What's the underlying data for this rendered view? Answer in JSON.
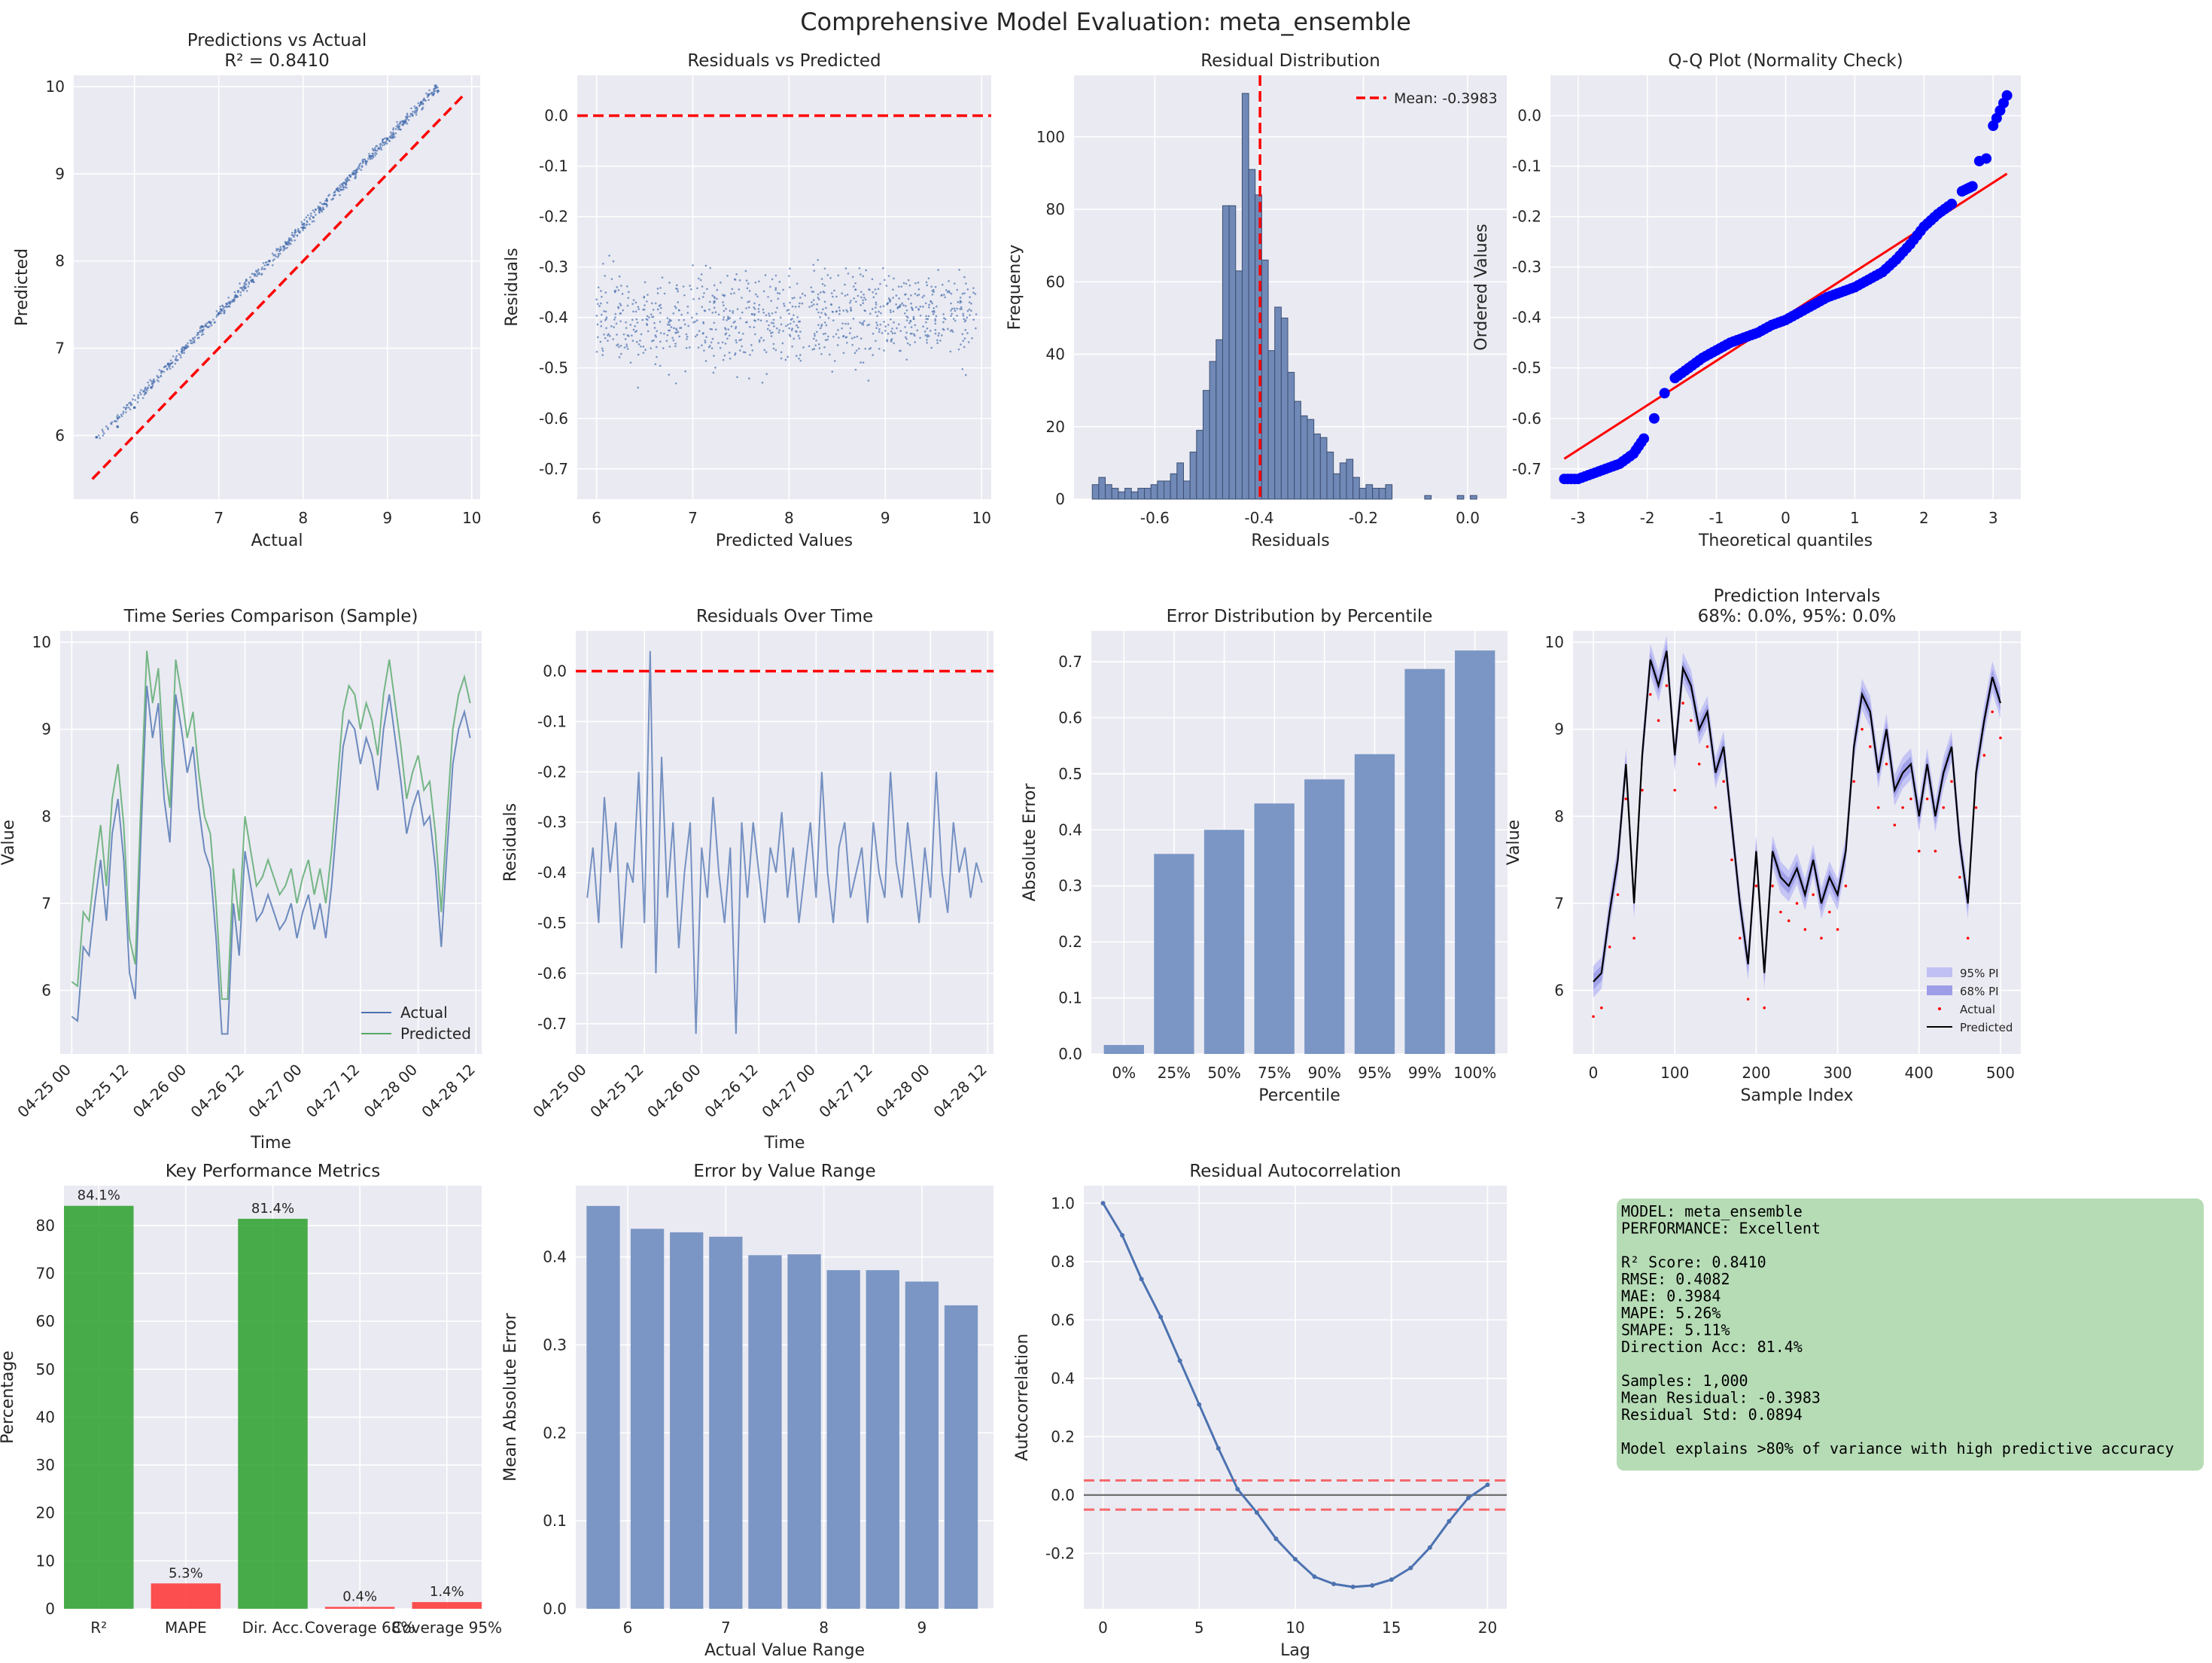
{
  "suptitle": "Comprehensive Model Evaluation: meta_ensemble",
  "colors": {
    "panel_bg": "#eaeaf2",
    "grid": "#ffffff",
    "blue": "#4c72b0",
    "green": "#55a868",
    "red": "#ff0000",
    "qq_blue": "#0000ff",
    "pi95": "#c0c0f5",
    "pi68": "#9d9de8",
    "metric_good": "#2ca02c",
    "metric_bad": "#ff3333",
    "textbox_bg": "#b2dab2"
  },
  "chart_data": [
    {
      "id": "pred_vs_actual",
      "type": "scatter",
      "title": "Predictions vs Actual\nR² = 0.8410",
      "xlabel": "Actual",
      "ylabel": "Predicted",
      "xlim": [
        5.28,
        10.1
      ],
      "ylim": [
        5.27,
        10.13
      ],
      "xticks": [
        6,
        7,
        8,
        9,
        10
      ],
      "yticks": [
        6,
        7,
        8,
        9,
        10
      ],
      "reference_line": [
        [
          5.5,
          5.5
        ],
        [
          9.9,
          9.9
        ]
      ],
      "points_summary": "approximately predicted = actual + 0.40 with small noise",
      "points": [
        [
          5.55,
          5.98
        ],
        [
          5.8,
          6.1
        ],
        [
          6.0,
          6.32
        ],
        [
          6.2,
          6.55
        ],
        [
          6.4,
          6.82
        ],
        [
          6.6,
          7.0
        ],
        [
          6.8,
          7.25
        ],
        [
          7.0,
          7.4
        ],
        [
          7.2,
          7.6
        ],
        [
          7.4,
          7.78
        ],
        [
          7.6,
          8.0
        ],
        [
          7.8,
          8.2
        ],
        [
          8.0,
          8.38
        ],
        [
          8.2,
          8.6
        ],
        [
          8.4,
          8.82
        ],
        [
          8.6,
          9.0
        ],
        [
          8.8,
          9.2
        ],
        [
          9.0,
          9.4
        ],
        [
          9.2,
          9.6
        ],
        [
          9.4,
          9.82
        ],
        [
          9.6,
          9.95
        ]
      ]
    },
    {
      "id": "resid_vs_pred",
      "type": "scatter",
      "title": "Residuals vs Predicted",
      "xlabel": "Predicted Values",
      "ylabel": "Residuals",
      "xlim": [
        5.8,
        10.1
      ],
      "ylim": [
        -0.76,
        0.08
      ],
      "xticks": [
        6,
        7,
        8,
        9,
        10
      ],
      "yticks": [
        0.0,
        -0.1,
        -0.2,
        -0.3,
        -0.4,
        -0.5,
        -0.6,
        -0.7
      ],
      "hline": 0.0,
      "points_summary": "residuals concentrated around -0.40, spread -0.72 to 0.04"
    },
    {
      "id": "resid_dist",
      "type": "bar",
      "title": "Residual Distribution",
      "xlabel": "Residuals",
      "ylabel": "Frequency",
      "xlim": [
        -0.755,
        0.075
      ],
      "ylim": [
        0,
        117
      ],
      "xticks": [
        -0.6,
        -0.4,
        -0.2,
        0.0
      ],
      "yticks": [
        0,
        20,
        40,
        60,
        80,
        100
      ],
      "bin_start": -0.72,
      "bin_width": 0.0125,
      "counts": [
        4,
        6,
        4,
        3,
        2,
        3,
        2,
        3,
        3,
        4,
        5,
        5,
        7,
        10,
        5,
        13,
        19,
        30,
        38,
        44,
        81,
        81,
        63,
        112,
        91,
        84,
        66,
        41,
        53,
        50,
        35,
        27,
        23,
        22,
        18,
        17,
        13,
        7,
        10,
        11,
        6,
        3,
        4,
        3,
        3,
        4,
        0,
        0,
        0,
        0,
        0,
        1,
        0,
        0,
        0,
        0,
        1,
        0,
        1,
        0
      ],
      "vline": -0.3983,
      "legend": [
        "Mean: -0.3983"
      ]
    },
    {
      "id": "qq",
      "type": "scatter",
      "title": "Q-Q Plot (Normality Check)",
      "xlabel": "Theoretical quantiles",
      "ylabel": "Ordered Values",
      "xlim": [
        -3.4,
        3.4
      ],
      "ylim": [
        -0.76,
        0.08
      ],
      "xticks": [
        -3,
        -2,
        -1,
        0,
        1,
        2,
        3
      ],
      "yticks": [
        0.0,
        -0.1,
        -0.2,
        -0.3,
        -0.4,
        -0.5,
        -0.6,
        -0.7
      ],
      "fit_line": [
        [
          -3.2,
          -0.68
        ],
        [
          3.2,
          -0.115
        ]
      ],
      "points": [
        [
          -3.2,
          -0.72
        ],
        [
          -3.0,
          -0.72
        ],
        [
          -2.8,
          -0.71
        ],
        [
          -2.6,
          -0.7
        ],
        [
          -2.4,
          -0.69
        ],
        [
          -2.2,
          -0.67
        ],
        [
          -2.05,
          -0.64
        ],
        [
          -1.9,
          -0.6
        ],
        [
          -1.75,
          -0.55
        ],
        [
          -1.6,
          -0.52
        ],
        [
          -1.4,
          -0.5
        ],
        [
          -1.2,
          -0.48
        ],
        [
          -1.0,
          -0.465
        ],
        [
          -0.8,
          -0.45
        ],
        [
          -0.6,
          -0.44
        ],
        [
          -0.4,
          -0.43
        ],
        [
          -0.2,
          -0.415
        ],
        [
          0.0,
          -0.405
        ],
        [
          0.2,
          -0.39
        ],
        [
          0.4,
          -0.375
        ],
        [
          0.6,
          -0.36
        ],
        [
          0.8,
          -0.35
        ],
        [
          1.0,
          -0.34
        ],
        [
          1.2,
          -0.325
        ],
        [
          1.4,
          -0.31
        ],
        [
          1.6,
          -0.285
        ],
        [
          1.8,
          -0.255
        ],
        [
          2.0,
          -0.22
        ],
        [
          2.2,
          -0.195
        ],
        [
          2.4,
          -0.175
        ],
        [
          2.55,
          -0.15
        ],
        [
          2.7,
          -0.14
        ],
        [
          2.8,
          -0.09
        ],
        [
          2.9,
          -0.085
        ],
        [
          3.0,
          -0.02
        ],
        [
          3.2,
          0.04
        ]
      ]
    },
    {
      "id": "ts_compare",
      "type": "line",
      "title": "Time Series Comparison (Sample)",
      "xlabel": "Time",
      "ylabel": "Value",
      "xticks": [
        "04-25 00",
        "04-25 12",
        "04-26 00",
        "04-26 12",
        "04-27 00",
        "04-27 12",
        "04-28 00",
        "04-28 12"
      ],
      "xlim": [
        -0.1,
        3.55
      ],
      "ylim": [
        5.27,
        10.13
      ],
      "yticks": [
        6,
        7,
        8,
        9,
        10
      ],
      "x_days": [
        0.0,
        0.05,
        0.1,
        0.15,
        0.2,
        0.25,
        0.3,
        0.35,
        0.4,
        0.45,
        0.5,
        0.55,
        0.6,
        0.65,
        0.7,
        0.75,
        0.8,
        0.85,
        0.9,
        0.95,
        1.0,
        1.05,
        1.1,
        1.15,
        1.2,
        1.25,
        1.3,
        1.35,
        1.4,
        1.45,
        1.5,
        1.55,
        1.6,
        1.65,
        1.7,
        1.75,
        1.8,
        1.85,
        1.9,
        1.95,
        2.0,
        2.05,
        2.1,
        2.15,
        2.2,
        2.25,
        2.3,
        2.35,
        2.4,
        2.45,
        2.5,
        2.55,
        2.6,
        2.65,
        2.7,
        2.75,
        2.8,
        2.85,
        2.9,
        2.95,
        3.0,
        3.05,
        3.1,
        3.15,
        3.2,
        3.25,
        3.3,
        3.35,
        3.4,
        3.45
      ],
      "series": [
        {
          "name": "Actual",
          "values": [
            5.7,
            5.65,
            6.5,
            6.4,
            7.0,
            7.5,
            6.8,
            7.8,
            8.2,
            7.5,
            6.2,
            5.9,
            7.8,
            9.5,
            8.9,
            9.3,
            8.2,
            7.7,
            9.4,
            9.0,
            8.5,
            8.8,
            8.1,
            7.6,
            7.4,
            6.6,
            5.5,
            5.5,
            7.0,
            6.4,
            7.6,
            7.2,
            6.8,
            6.9,
            7.1,
            6.9,
            6.7,
            6.8,
            7.0,
            6.6,
            6.9,
            7.1,
            6.7,
            7.0,
            6.6,
            7.2,
            8.0,
            8.8,
            9.1,
            9.0,
            8.6,
            8.9,
            8.7,
            8.3,
            9.0,
            9.4,
            8.9,
            8.4,
            7.8,
            8.1,
            8.3,
            7.9,
            8.0,
            7.4,
            6.5,
            7.6,
            8.6,
            9.0,
            9.2,
            8.9
          ]
        },
        {
          "name": "Predicted",
          "values": [
            6.1,
            6.05,
            6.9,
            6.8,
            7.4,
            7.9,
            7.2,
            8.2,
            8.6,
            7.9,
            6.6,
            6.3,
            8.2,
            9.9,
            9.3,
            9.7,
            8.6,
            8.1,
            9.8,
            9.4,
            8.9,
            9.2,
            8.5,
            8.0,
            7.8,
            7.0,
            5.9,
            5.9,
            7.4,
            6.8,
            8.0,
            7.6,
            7.2,
            7.3,
            7.5,
            7.3,
            7.1,
            7.2,
            7.4,
            7.0,
            7.3,
            7.5,
            7.1,
            7.4,
            7.0,
            7.6,
            8.4,
            9.2,
            9.5,
            9.4,
            9.0,
            9.3,
            9.1,
            8.7,
            9.4,
            9.8,
            9.3,
            8.8,
            8.2,
            8.5,
            8.7,
            8.3,
            8.4,
            7.8,
            6.9,
            8.0,
            9.0,
            9.4,
            9.6,
            9.3
          ]
        }
      ],
      "legend": [
        "Actual",
        "Predicted"
      ]
    },
    {
      "id": "resid_time",
      "type": "line",
      "title": "Residuals Over Time",
      "xlabel": "Time",
      "ylabel": "Residuals",
      "xticks": [
        "04-25 00",
        "04-25 12",
        "04-26 00",
        "04-26 12",
        "04-27 00",
        "04-27 12",
        "04-28 00",
        "04-28 12"
      ],
      "xlim": [
        -0.1,
        3.55
      ],
      "ylim": [
        -0.76,
        0.08
      ],
      "yticks": [
        0.0,
        -0.1,
        -0.2,
        -0.3,
        -0.4,
        -0.5,
        -0.6,
        -0.7
      ],
      "hline": 0.0,
      "x_days": [
        0.0,
        0.05,
        0.1,
        0.15,
        0.2,
        0.25,
        0.3,
        0.35,
        0.4,
        0.45,
        0.5,
        0.55,
        0.6,
        0.65,
        0.7,
        0.75,
        0.8,
        0.85,
        0.9,
        0.95,
        1.0,
        1.05,
        1.1,
        1.15,
        1.2,
        1.25,
        1.3,
        1.35,
        1.4,
        1.45,
        1.5,
        1.55,
        1.6,
        1.65,
        1.7,
        1.75,
        1.8,
        1.85,
        1.9,
        1.95,
        2.0,
        2.05,
        2.1,
        2.15,
        2.2,
        2.25,
        2.3,
        2.35,
        2.4,
        2.45,
        2.5,
        2.55,
        2.6,
        2.65,
        2.7,
        2.75,
        2.8,
        2.85,
        2.9,
        2.95,
        3.0,
        3.05,
        3.1,
        3.15,
        3.2,
        3.25,
        3.3,
        3.35,
        3.4,
        3.45
      ],
      "values": [
        -0.45,
        -0.35,
        -0.5,
        -0.25,
        -0.4,
        -0.3,
        -0.55,
        -0.38,
        -0.42,
        -0.2,
        -0.5,
        0.04,
        -0.6,
        -0.17,
        -0.45,
        -0.3,
        -0.55,
        -0.4,
        -0.3,
        -0.72,
        -0.35,
        -0.45,
        -0.25,
        -0.4,
        -0.5,
        -0.35,
        -0.72,
        -0.3,
        -0.45,
        -0.3,
        -0.4,
        -0.5,
        -0.35,
        -0.4,
        -0.28,
        -0.45,
        -0.35,
        -0.5,
        -0.4,
        -0.3,
        -0.45,
        -0.2,
        -0.4,
        -0.5,
        -0.35,
        -0.3,
        -0.45,
        -0.4,
        -0.35,
        -0.5,
        -0.3,
        -0.4,
        -0.45,
        -0.2,
        -0.38,
        -0.45,
        -0.3,
        -0.4,
        -0.5,
        -0.35,
        -0.45,
        -0.2,
        -0.4,
        -0.48,
        -0.3,
        -0.4,
        -0.35,
        -0.45,
        -0.38,
        -0.42
      ]
    },
    {
      "id": "err_percentile",
      "type": "bar",
      "title": "Error Distribution by Percentile",
      "xlabel": "Percentile",
      "ylabel": "Absolute Error",
      "categories": [
        "0%",
        "25%",
        "50%",
        "75%",
        "90%",
        "95%",
        "99%",
        "100%"
      ],
      "values": [
        0.016,
        0.357,
        0.4,
        0.447,
        0.49,
        0.535,
        0.687,
        0.72
      ],
      "ylim": [
        0,
        0.755
      ],
      "yticks": [
        0.0,
        0.1,
        0.2,
        0.3,
        0.4,
        0.5,
        0.6,
        0.7
      ]
    },
    {
      "id": "pred_intervals",
      "type": "line",
      "title": "Prediction Intervals\n68%: 0.0%, 95%: 0.0%",
      "xlabel": "Sample Index",
      "ylabel": "Value",
      "xlim": [
        -25,
        525
      ],
      "ylim": [
        5.27,
        10.13
      ],
      "xticks": [
        0,
        100,
        200,
        300,
        400,
        500
      ],
      "yticks": [
        6,
        7,
        8,
        9,
        10
      ],
      "legend": [
        "95% PI",
        "68% PI",
        "Actual",
        "Predicted"
      ],
      "x": [
        0,
        10,
        20,
        30,
        40,
        50,
        60,
        70,
        80,
        90,
        100,
        110,
        120,
        130,
        140,
        150,
        160,
        170,
        180,
        190,
        200,
        210,
        220,
        230,
        240,
        250,
        260,
        270,
        280,
        290,
        300,
        310,
        320,
        330,
        340,
        350,
        360,
        370,
        380,
        390,
        400,
        410,
        420,
        430,
        440,
        450,
        460,
        470,
        480,
        490,
        500
      ],
      "predicted": [
        6.1,
        6.2,
        6.9,
        7.5,
        8.6,
        7.0,
        8.7,
        9.8,
        9.5,
        9.9,
        8.7,
        9.7,
        9.5,
        9.0,
        9.2,
        8.5,
        8.8,
        7.9,
        7.0,
        6.3,
        7.6,
        6.2,
        7.6,
        7.3,
        7.2,
        7.4,
        7.1,
        7.5,
        7.0,
        7.3,
        7.1,
        7.6,
        8.8,
        9.4,
        9.2,
        8.5,
        9.0,
        8.3,
        8.5,
        8.6,
        8.0,
        8.6,
        8.0,
        8.5,
        8.8,
        7.7,
        7.0,
        8.5,
        9.1,
        9.6,
        9.3
      ],
      "actual": [
        5.7,
        5.8,
        6.5,
        7.1,
        8.2,
        6.6,
        8.3,
        9.4,
        9.1,
        9.5,
        8.3,
        9.3,
        9.1,
        8.6,
        8.8,
        8.1,
        8.4,
        7.5,
        6.6,
        5.9,
        7.2,
        5.8,
        7.2,
        6.9,
        6.8,
        7.0,
        6.7,
        7.1,
        6.6,
        6.9,
        6.7,
        7.2,
        8.4,
        9.0,
        8.8,
        8.1,
        8.6,
        7.9,
        8.1,
        8.2,
        7.6,
        8.2,
        7.6,
        8.1,
        8.4,
        7.3,
        6.6,
        8.1,
        8.7,
        9.2,
        8.9
      ],
      "pi68_halfwidth": 0.09,
      "pi95_halfwidth": 0.18
    },
    {
      "id": "key_metrics",
      "type": "bar",
      "title": "Key Performance Metrics",
      "ylabel": "Percentage",
      "categories": [
        "R²",
        "MAPE",
        "Dir. Acc.",
        "Coverage 68%",
        "Coverage 95%"
      ],
      "values": [
        84.1,
        5.3,
        81.4,
        0.4,
        1.4
      ],
      "labels": [
        "84.1%",
        "5.3%",
        "81.4%",
        "0.4%",
        "1.4%"
      ],
      "good": [
        true,
        false,
        true,
        false,
        false
      ],
      "ylim": [
        0,
        88.3
      ],
      "yticks": [
        0,
        10,
        20,
        30,
        40,
        50,
        60,
        70,
        80
      ]
    },
    {
      "id": "err_by_range",
      "type": "bar",
      "title": "Error by Value Range",
      "xlabel": "Actual Value Range",
      "ylabel": "Mean Absolute Error",
      "x": [
        5.75,
        6.2,
        6.6,
        7.0,
        7.4,
        7.8,
        8.2,
        8.6,
        9.0,
        9.4
      ],
      "values": [
        0.458,
        0.432,
        0.428,
        0.423,
        0.402,
        0.403,
        0.385,
        0.385,
        0.372,
        0.345
      ],
      "xlim": [
        5.47,
        9.73
      ],
      "ylim": [
        0,
        0.481
      ],
      "xticks": [
        6,
        7,
        8,
        9
      ],
      "yticks": [
        0.0,
        0.1,
        0.2,
        0.3,
        0.4
      ]
    },
    {
      "id": "autocorr",
      "type": "line",
      "title": "Residual Autocorrelation",
      "xlabel": "Lag",
      "ylabel": "Autocorrelation",
      "x": [
        0,
        1,
        2,
        3,
        4,
        5,
        6,
        7,
        8,
        9,
        10,
        11,
        12,
        13,
        14,
        15,
        16,
        17,
        18,
        19,
        20
      ],
      "values": [
        1.0,
        0.89,
        0.74,
        0.61,
        0.46,
        0.31,
        0.16,
        0.02,
        -0.06,
        -0.15,
        -0.22,
        -0.28,
        -0.305,
        -0.315,
        -0.31,
        -0.29,
        -0.25,
        -0.18,
        -0.09,
        -0.01,
        0.035
      ],
      "xlim": [
        -1.0,
        21.0
      ],
      "ylim": [
        -0.39,
        1.06
      ],
      "xticks": [
        0,
        5,
        10,
        15,
        20
      ],
      "yticks": [
        -0.2,
        0.0,
        0.2,
        0.4,
        0.6,
        0.8,
        1.0
      ],
      "conf_band": 0.05
    }
  ],
  "summary_box": {
    "lines": [
      "MODEL: meta_ensemble",
      "PERFORMANCE: Excellent",
      "",
      "R² Score: 0.8410",
      "RMSE: 0.4082",
      "MAE: 0.3984",
      "MAPE: 5.26%",
      "SMAPE: 5.11%",
      "Direction Acc: 81.4%",
      "",
      "Samples: 1,000",
      "Mean Residual: -0.3983",
      "Residual Std: 0.0894",
      "",
      "Model explains >80% of variance with high predictive accuracy"
    ]
  }
}
